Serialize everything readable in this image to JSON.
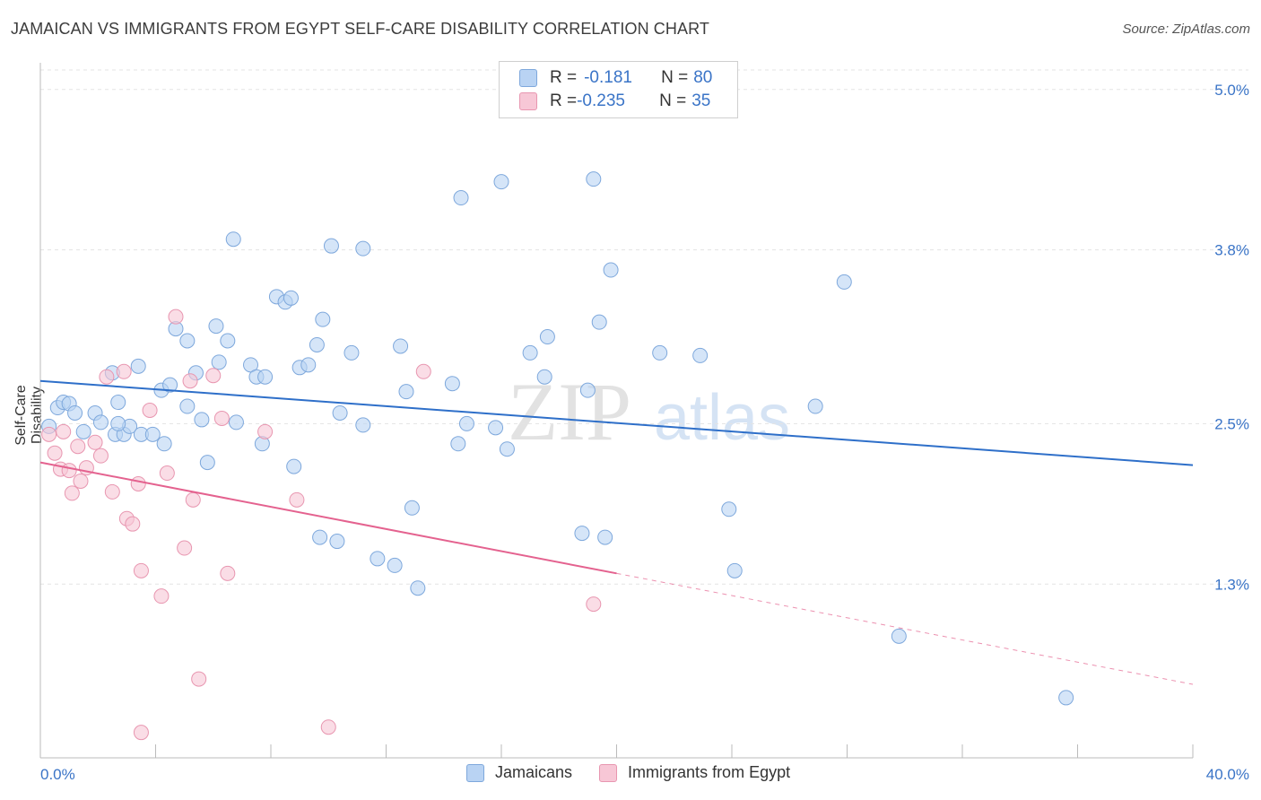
{
  "title": "JAMAICAN VS IMMIGRANTS FROM EGYPT SELF-CARE DISABILITY CORRELATION CHART",
  "source": "Source: ZipAtlas.com",
  "watermark": {
    "zip": "ZIP",
    "atlas": "atlas"
  },
  "legend_top": {
    "rows": [
      {
        "r_label": "R = ",
        "r_value": "-0.181",
        "n_label": "N = ",
        "n_value": "80"
      },
      {
        "r_label": "R = ",
        "r_value": "-0.235",
        "n_label": "N = ",
        "n_value": "35"
      }
    ]
  },
  "legend_bottom": {
    "items": [
      "Jamaicans",
      "Immigrants from Egypt"
    ]
  },
  "colors": {
    "jamaican_fill": "#b9d3f3",
    "jamaican_stroke": "#7ea8dc",
    "jamaican_line": "#2e6fc9",
    "egypt_fill": "#f7c7d6",
    "egypt_stroke": "#e896b0",
    "egypt_line": "#e4628f",
    "tick_label": "#3a74c7",
    "grid": "#e3e3e3"
  },
  "chart_data": {
    "type": "scatter",
    "title": "JAMAICAN VS IMMIGRANTS FROM EGYPT SELF-CARE DISABILITY CORRELATION CHART",
    "xlabel": "",
    "ylabel": "Self-Care Disability",
    "xlim": [
      0,
      40
    ],
    "ylim": [
      0,
      5.2
    ],
    "x_tick_labels": [
      "0.0%",
      "40.0%"
    ],
    "y_ticks": [
      1.3,
      2.5,
      3.8,
      5.0
    ],
    "y_tick_labels": [
      "1.3%",
      "2.5%",
      "3.8%",
      "5.0%"
    ],
    "grid": true,
    "legend_position": "top-center",
    "series": [
      {
        "name": "Jamaicans",
        "r": -0.181,
        "n": 80,
        "trend": {
          "x": [
            0,
            40
          ],
          "y": [
            2.82,
            2.19
          ]
        },
        "points": [
          [
            0.3,
            2.48
          ],
          [
            0.6,
            2.62
          ],
          [
            0.8,
            2.66
          ],
          [
            1.0,
            2.65
          ],
          [
            1.2,
            2.58
          ],
          [
            1.5,
            2.44
          ],
          [
            1.9,
            2.58
          ],
          [
            2.1,
            2.51
          ],
          [
            2.6,
            2.42
          ],
          [
            2.7,
            2.66
          ],
          [
            2.5,
            2.88
          ],
          [
            2.9,
            2.42
          ],
          [
            3.1,
            2.48
          ],
          [
            3.4,
            2.93
          ],
          [
            3.5,
            2.42
          ],
          [
            3.9,
            2.42
          ],
          [
            4.2,
            2.75
          ],
          [
            4.3,
            2.35
          ],
          [
            4.5,
            2.79
          ],
          [
            5.1,
            2.63
          ],
          [
            4.7,
            3.21
          ],
          [
            5.1,
            3.12
          ],
          [
            5.4,
            2.88
          ],
          [
            5.6,
            2.53
          ],
          [
            5.8,
            2.21
          ],
          [
            6.1,
            3.23
          ],
          [
            6.2,
            2.96
          ],
          [
            6.5,
            3.12
          ],
          [
            6.8,
            2.51
          ],
          [
            6.7,
            3.88
          ],
          [
            7.3,
            2.94
          ],
          [
            7.5,
            2.85
          ],
          [
            7.7,
            2.35
          ],
          [
            7.8,
            2.85
          ],
          [
            8.2,
            3.45
          ],
          [
            8.5,
            3.41
          ],
          [
            8.7,
            3.44
          ],
          [
            8.8,
            2.18
          ],
          [
            9.0,
            2.92
          ],
          [
            9.3,
            2.94
          ],
          [
            9.6,
            3.09
          ],
          [
            9.8,
            3.28
          ],
          [
            10.1,
            3.83
          ],
          [
            10.4,
            2.58
          ],
          [
            10.8,
            3.03
          ],
          [
            11.2,
            2.49
          ],
          [
            11.2,
            3.81
          ],
          [
            11.7,
            1.49
          ],
          [
            12.3,
            1.44
          ],
          [
            12.5,
            3.08
          ],
          [
            12.7,
            2.74
          ],
          [
            12.9,
            1.87
          ],
          [
            13.1,
            1.27
          ],
          [
            14.3,
            2.8
          ],
          [
            14.5,
            2.35
          ],
          [
            14.8,
            2.5
          ],
          [
            14.6,
            4.19
          ],
          [
            15.8,
            2.47
          ],
          [
            16.0,
            4.31
          ],
          [
            16.2,
            2.31
          ],
          [
            17.0,
            3.03
          ],
          [
            17.5,
            2.85
          ],
          [
            17.6,
            3.15
          ],
          [
            18.8,
            1.68
          ],
          [
            19.0,
            2.75
          ],
          [
            19.2,
            4.33
          ],
          [
            19.4,
            3.26
          ],
          [
            19.6,
            1.65
          ],
          [
            19.8,
            3.65
          ],
          [
            21.5,
            3.03
          ],
          [
            22.9,
            3.01
          ],
          [
            23.9,
            1.86
          ],
          [
            24.1,
            1.4
          ],
          [
            26.9,
            2.63
          ],
          [
            27.9,
            3.56
          ],
          [
            29.8,
            0.91
          ],
          [
            35.6,
            0.45
          ],
          [
            9.7,
            1.65
          ],
          [
            10.3,
            1.62
          ],
          [
            2.7,
            2.5
          ]
        ]
      },
      {
        "name": "Immigrants from Egypt",
        "r": -0.235,
        "n": 35,
        "trend": {
          "x": [
            0,
            20
          ],
          "y": [
            2.21,
            1.38
          ]
        },
        "trend_ext": {
          "x": [
            20,
            40
          ],
          "y": [
            1.38,
            0.55
          ]
        },
        "points": [
          [
            0.3,
            2.42
          ],
          [
            0.5,
            2.28
          ],
          [
            0.7,
            2.16
          ],
          [
            1.0,
            2.15
          ],
          [
            1.1,
            1.98
          ],
          [
            1.3,
            2.33
          ],
          [
            1.4,
            2.07
          ],
          [
            1.6,
            2.17
          ],
          [
            1.9,
            2.36
          ],
          [
            2.1,
            2.26
          ],
          [
            2.3,
            2.85
          ],
          [
            2.5,
            1.99
          ],
          [
            2.9,
            2.89
          ],
          [
            3.0,
            1.79
          ],
          [
            3.2,
            1.75
          ],
          [
            3.4,
            2.05
          ],
          [
            3.5,
            1.4
          ],
          [
            3.8,
            2.6
          ],
          [
            4.2,
            1.21
          ],
          [
            4.4,
            2.13
          ],
          [
            4.7,
            3.3
          ],
          [
            5.0,
            1.57
          ],
          [
            5.2,
            2.82
          ],
          [
            5.3,
            1.93
          ],
          [
            5.5,
            0.59
          ],
          [
            6.0,
            2.86
          ],
          [
            6.3,
            2.54
          ],
          [
            6.5,
            1.38
          ],
          [
            7.8,
            2.44
          ],
          [
            8.9,
            1.93
          ],
          [
            10.0,
            0.23
          ],
          [
            13.3,
            2.89
          ],
          [
            3.5,
            0.19
          ],
          [
            19.2,
            1.15
          ],
          [
            0.8,
            2.44
          ]
        ]
      }
    ]
  }
}
